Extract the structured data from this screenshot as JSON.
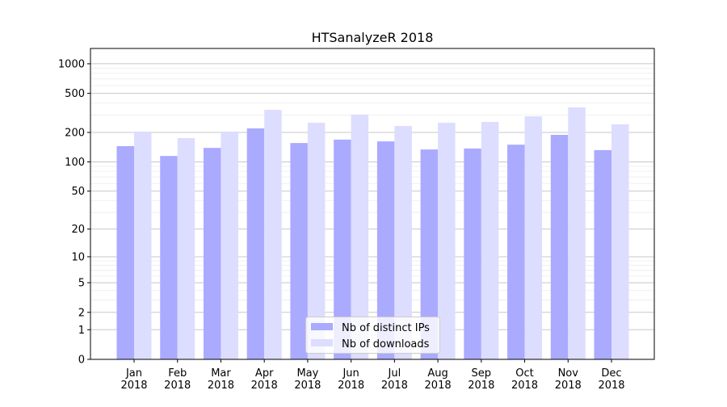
{
  "chart_data": {
    "type": "bar",
    "title": "HTSanalyzeR 2018",
    "xlabel": "",
    "ylabel": "",
    "yscale": "log10(y+1)",
    "ylim": [
      0,
      1430
    ],
    "yticks": [
      0,
      1,
      2,
      5,
      10,
      20,
      50,
      100,
      200,
      500,
      1000
    ],
    "ytick_labels": [
      "0",
      "1",
      "2",
      "5",
      "10",
      "20",
      "50",
      "100",
      "200",
      "500",
      "1000"
    ],
    "grid": true,
    "legend_position": "lower center",
    "categories": [
      "Jan\n2018",
      "Feb\n2018",
      "Mar\n2018",
      "Apr\n2018",
      "May\n2018",
      "Jun\n2018",
      "Jul\n2018",
      "Aug\n2018",
      "Sep\n2018",
      "Oct\n2018",
      "Nov\n2018",
      "Dec\n2018"
    ],
    "category_lines": [
      [
        "Jan",
        "2018"
      ],
      [
        "Feb",
        "2018"
      ],
      [
        "Mar",
        "2018"
      ],
      [
        "Apr",
        "2018"
      ],
      [
        "May",
        "2018"
      ],
      [
        "Jun",
        "2018"
      ],
      [
        "Jul",
        "2018"
      ],
      [
        "Aug",
        "2018"
      ],
      [
        "Sep",
        "2018"
      ],
      [
        "Oct",
        "2018"
      ],
      [
        "Nov",
        "2018"
      ],
      [
        "Dec",
        "2018"
      ]
    ],
    "series": [
      {
        "name": "Nb of distinct IPs",
        "color": "#aaaaff",
        "values": [
          145,
          115,
          139,
          220,
          156,
          169,
          162,
          134,
          137,
          150,
          189,
          132
        ]
      },
      {
        "name": "Nb of downloads",
        "color": "#ddddff",
        "values": [
          204,
          175,
          204,
          340,
          251,
          304,
          233,
          251,
          256,
          292,
          360,
          242
        ]
      }
    ]
  }
}
